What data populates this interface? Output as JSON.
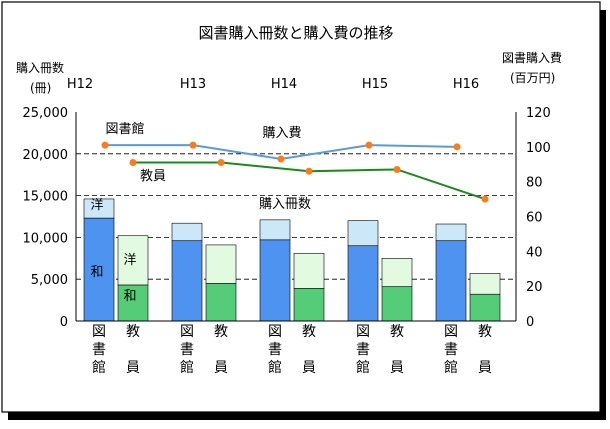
{
  "chart_data": {
    "type": "bar",
    "title": "図書購入冊数と購入費の推移",
    "left_axis": {
      "label_line1": "購入冊数",
      "label_line2": "(冊)",
      "ticks": [
        "0",
        "5,000",
        "10,000",
        "15,000",
        "20,000",
        "25,000"
      ],
      "ylim": [
        0,
        25000
      ]
    },
    "right_axis": {
      "label_line1": "図書購入費",
      "label_line2": "(百万円)",
      "ticks": [
        "0",
        "20",
        "40",
        "60",
        "80",
        "100",
        "120"
      ],
      "ylim": [
        0,
        120
      ]
    },
    "years": [
      "H12",
      "H13",
      "H14",
      "H15",
      "H16"
    ],
    "group_labels": [
      "図書館",
      "教員"
    ],
    "bar_segment_labels": {
      "wa": "和",
      "yo": "洋"
    },
    "series_bars": [
      {
        "group": "図書館",
        "wa": [
          12300,
          9600,
          9700,
          9000,
          9600
        ],
        "yo": [
          2300,
          2100,
          2400,
          3000,
          2000
        ]
      },
      {
        "group": "教員",
        "wa": [
          4300,
          4500,
          3900,
          4100,
          3200
        ],
        "yo": [
          5900,
          4600,
          4200,
          3400,
          2500
        ]
      }
    ],
    "line_title_books": "購入冊数",
    "line_title_cost": "購入費",
    "series_lines": [
      {
        "name": "図書館",
        "values": [
          101,
          101,
          93,
          101,
          100
        ],
        "color": "#5b9bd5"
      },
      {
        "name": "教員",
        "values": [
          91,
          91,
          86,
          87,
          70
        ],
        "color": "#1a8a1a"
      }
    ],
    "colors": {
      "lib_wa": "#4f93f0",
      "lib_yo": "#cce8f8",
      "fac_wa": "#55cc77",
      "fac_yo": "#e2fbe0",
      "marker": "#ff7a1a"
    }
  }
}
